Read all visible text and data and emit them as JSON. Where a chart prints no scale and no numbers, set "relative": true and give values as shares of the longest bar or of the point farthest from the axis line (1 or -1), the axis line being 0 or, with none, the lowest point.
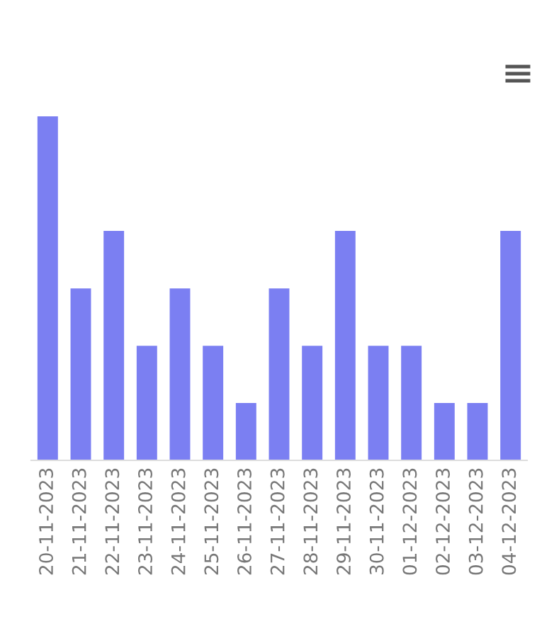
{
  "chart_data": {
    "type": "bar",
    "relative": true,
    "categories": [
      "20-11-2023",
      "21-11-2023",
      "22-11-2023",
      "23-11-2023",
      "24-11-2023",
      "25-11-2023",
      "26-11-2023",
      "27-11-2023",
      "28-11-2023",
      "29-11-2023",
      "30-11-2023",
      "01-12-2023",
      "02-12-2023",
      "03-12-2023",
      "04-12-2023"
    ],
    "values": [
      1,
      0.5,
      0.667,
      0.333,
      0.5,
      0.333,
      0.167,
      0.5,
      0.333,
      0.667,
      0.333,
      0.333,
      0.167,
      0.167,
      0.667
    ],
    "color": "#7b7ff2"
  }
}
